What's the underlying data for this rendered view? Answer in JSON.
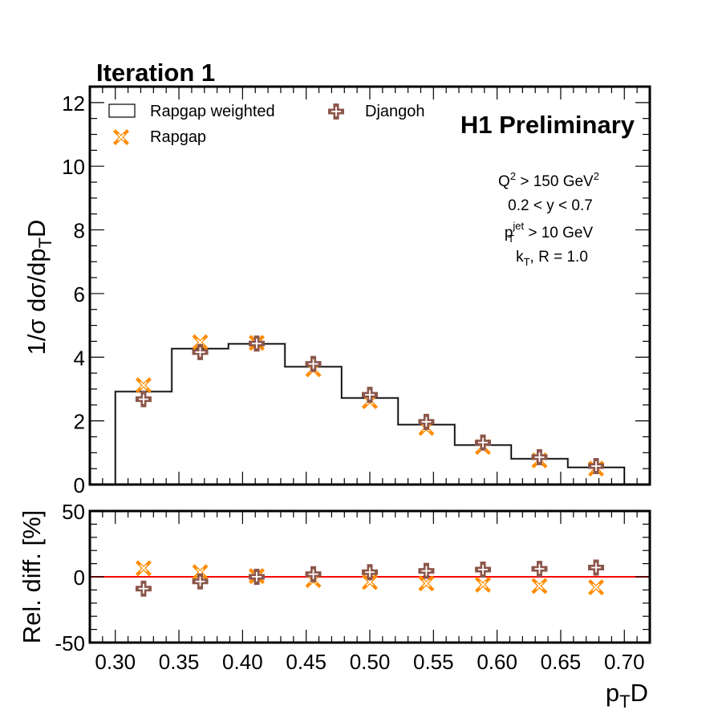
{
  "chart_data": [
    {
      "type": "line",
      "panel": "main",
      "title": "Iteration 1",
      "xlabel": "p_T D",
      "ylabel": "1/σ dσ/dp_T D",
      "xlim": [
        0.28,
        0.72
      ],
      "ylim": [
        0,
        12.5
      ],
      "yticks": [
        0,
        2,
        4,
        6,
        8,
        10,
        12
      ],
      "ytick_labels": [
        "0",
        "2",
        "4",
        "6",
        "8",
        "10",
        "12"
      ],
      "grid": false,
      "legend_placement": "top-left",
      "bin_edges": [
        0.3,
        0.3444,
        0.3889,
        0.4333,
        0.4778,
        0.5222,
        0.5667,
        0.6111,
        0.6556,
        0.7
      ],
      "bin_centers": [
        0.3222,
        0.3667,
        0.4111,
        0.4556,
        0.5,
        0.5444,
        0.5889,
        0.6333,
        0.6778
      ],
      "series": [
        {
          "name": "Rapgap weighted",
          "style": "step-histogram",
          "color": "#000000",
          "values": [
            2.92,
            4.27,
            4.42,
            3.7,
            2.72,
            1.88,
            1.24,
            0.81,
            0.54
          ]
        },
        {
          "name": "Rapgap",
          "style": "marker-x",
          "color": "#ff8c00",
          "values": [
            3.12,
            4.47,
            4.45,
            3.62,
            2.62,
            1.78,
            1.18,
            0.76,
            0.5
          ]
        },
        {
          "name": "Djangoh",
          "style": "marker-plus",
          "color": "#8c564b",
          "values": [
            2.68,
            4.16,
            4.43,
            3.79,
            2.82,
            1.97,
            1.32,
            0.86,
            0.58
          ]
        }
      ],
      "annotations": {
        "experiment": "H1 Preliminary",
        "cuts": [
          {
            "main": "Q",
            "sup": "2",
            "rest": " > 150 GeV",
            "sup2": "2"
          },
          {
            "text": "0.2 < y < 0.7"
          },
          {
            "main": "p",
            "sup": "jet",
            "sub": "T",
            "rest": " > 10 GeV"
          },
          {
            "main": "k",
            "sub": "T",
            "rest": ", R = 1.0"
          }
        ]
      }
    },
    {
      "type": "scatter",
      "panel": "ratio",
      "xlabel": "p_T D",
      "ylabel": "Rel. diff. [%]",
      "xlim": [
        0.28,
        0.72
      ],
      "ylim": [
        -50,
        50
      ],
      "yticks": [
        -50,
        0,
        50
      ],
      "ytick_labels": [
        "-50",
        "0",
        "50"
      ],
      "xticks": [
        0.3,
        0.35,
        0.4,
        0.45,
        0.5,
        0.55,
        0.6,
        0.65,
        0.7
      ],
      "xtick_labels": [
        "0.30",
        "0.35",
        "0.40",
        "0.45",
        "0.50",
        "0.55",
        "0.60",
        "0.65",
        "0.70"
      ],
      "reference_line": {
        "y": 0,
        "color": "#ff0000"
      },
      "bin_centers": [
        0.3222,
        0.3667,
        0.4111,
        0.4556,
        0.5,
        0.5444,
        0.5889,
        0.6333,
        0.6778
      ],
      "series": [
        {
          "name": "Rapgap",
          "style": "marker-x",
          "color": "#ff8c00",
          "values": [
            6.5,
            3.5,
            0.5,
            -2.5,
            -4.0,
            -5.0,
            -6.0,
            -7.0,
            -8.0
          ]
        },
        {
          "name": "Djangoh",
          "style": "marker-plus",
          "color": "#8c564b",
          "values": [
            -9.0,
            -3.5,
            0.0,
            2.0,
            3.5,
            4.5,
            5.5,
            6.0,
            7.0
          ]
        }
      ]
    }
  ],
  "legend": {
    "items": [
      {
        "label": "Rapgap weighted",
        "icon": "open-box"
      },
      {
        "label": "Rapgap",
        "icon": "orange-x-marker"
      },
      {
        "label": "Djangoh",
        "icon": "brown-plus-marker"
      }
    ]
  },
  "labels": {
    "title": "Iteration 1",
    "experiment": "H1 Preliminary",
    "ylabel_main_prefix": "1/σ dσ/dp",
    "ylabel_main_sub": "T",
    "ylabel_main_suffix": "D",
    "ylabel_ratio": "Rel. diff. [%]",
    "xlabel_main": "p",
    "xlabel_sub": "T",
    "xlabel_suffix": "D",
    "cut_q2_main": "Q",
    "cut_q2_sup": "2",
    "cut_q2_rest": " > 150 GeV",
    "cut_q2_sup2": "2",
    "cut_y": "0.2 < y < 0.7",
    "cut_pt_main": "p",
    "cut_pt_sup": "jet",
    "cut_pt_sub": "T",
    "cut_pt_rest": " > 10 GeV",
    "cut_kt_main": "k",
    "cut_kt_sub": "T",
    "cut_kt_rest": ", R = 1.0"
  }
}
